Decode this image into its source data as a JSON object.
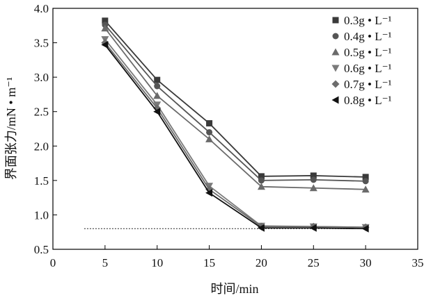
{
  "chart_data": {
    "type": "line",
    "title": "",
    "xlabel": "时间/min",
    "ylabel": "界面张力/mN • m⁻¹",
    "xlim": [
      0,
      35
    ],
    "ylim": [
      0.5,
      4.0
    ],
    "x_ticks": [
      "0",
      "5",
      "10",
      "15",
      "20",
      "25",
      "30",
      "35"
    ],
    "y_ticks": [
      "0.5",
      "1.0",
      "1.5",
      "2.0",
      "2.5",
      "3.0",
      "3.5",
      "4.0"
    ],
    "grid": false,
    "legend_position": "top-right",
    "x": [
      5,
      10,
      15,
      20,
      25,
      30
    ],
    "series": [
      {
        "name": "0.3g • L⁻¹",
        "marker": "square",
        "color": "#3a3a3a",
        "values": [
          3.82,
          2.96,
          2.33,
          1.56,
          1.57,
          1.55
        ]
      },
      {
        "name": "0.4g • L⁻¹",
        "marker": "circle",
        "color": "#555555",
        "values": [
          3.76,
          2.87,
          2.2,
          1.5,
          1.51,
          1.49
        ]
      },
      {
        "name": "0.5g • L⁻¹",
        "marker": "triangle-up",
        "color": "#6a6a6a",
        "values": [
          3.71,
          2.73,
          2.1,
          1.41,
          1.39,
          1.37
        ]
      },
      {
        "name": "0.6g • L⁻¹",
        "marker": "triangle-down",
        "color": "#7a7a7a",
        "values": [
          3.55,
          2.6,
          1.42,
          0.84,
          0.83,
          0.82
        ]
      },
      {
        "name": "0.7g • L⁻¹",
        "marker": "diamond",
        "color": "#6c6c6c",
        "values": [
          3.5,
          2.55,
          1.37,
          0.83,
          0.83,
          0.82
        ]
      },
      {
        "name": "0.8g • L⁻¹",
        "marker": "triangle-left",
        "color": "#111111",
        "values": [
          3.47,
          2.5,
          1.32,
          0.81,
          0.81,
          0.8
        ]
      }
    ],
    "reference_line": {
      "style": "dotted",
      "x": [
        3,
        30
      ],
      "y": 0.8
    }
  }
}
